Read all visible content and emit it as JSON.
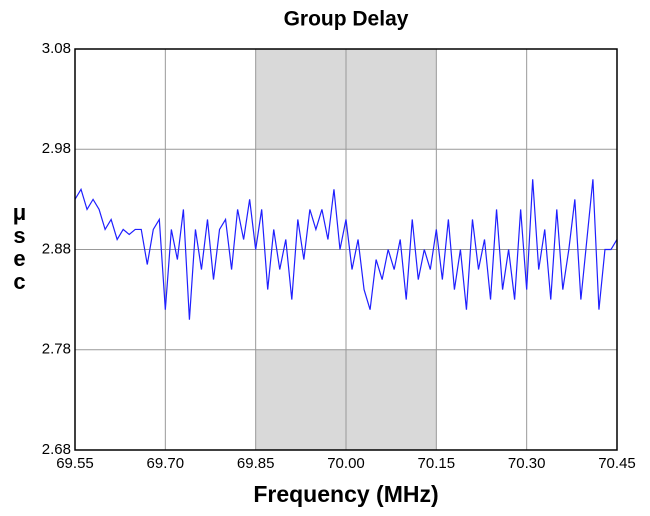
{
  "chart_data": {
    "type": "line",
    "title": "Group Delay",
    "x_label": "Frequency (MHz)",
    "y_label": "μsec",
    "x": [
      69.55,
      69.56,
      69.57,
      69.58,
      69.59,
      69.6,
      69.61,
      69.62,
      69.63,
      69.64,
      69.65,
      69.66,
      69.67,
      69.68,
      69.69,
      69.7,
      69.71,
      69.72,
      69.73,
      69.74,
      69.75,
      69.76,
      69.77,
      69.78,
      69.79,
      69.8,
      69.81,
      69.82,
      69.83,
      69.84,
      69.85,
      69.86,
      69.87,
      69.88,
      69.89,
      69.9,
      69.91,
      69.92,
      69.93,
      69.94,
      69.95,
      69.96,
      69.97,
      69.98,
      69.99,
      70.0,
      70.01,
      70.02,
      70.03,
      70.04,
      70.05,
      70.06,
      70.07,
      70.08,
      70.09,
      70.1,
      70.11,
      70.12,
      70.13,
      70.14,
      70.15,
      70.16,
      70.17,
      70.18,
      70.19,
      70.2,
      70.21,
      70.22,
      70.23,
      70.24,
      70.25,
      70.26,
      70.27,
      70.28,
      70.29,
      70.3,
      70.31,
      70.32,
      70.33,
      70.34,
      70.35,
      70.36,
      70.37,
      70.38,
      70.39,
      70.4,
      70.41,
      70.42,
      70.43,
      70.44,
      70.45
    ],
    "series": [
      {
        "name": "Group Delay",
        "color": "#1f1fff",
        "values": [
          2.93,
          2.94,
          2.92,
          2.93,
          2.92,
          2.9,
          2.91,
          2.89,
          2.9,
          2.895,
          2.9,
          2.9,
          2.865,
          2.9,
          2.91,
          2.82,
          2.9,
          2.87,
          2.92,
          2.81,
          2.9,
          2.86,
          2.91,
          2.85,
          2.9,
          2.91,
          2.86,
          2.92,
          2.89,
          2.93,
          2.88,
          2.92,
          2.84,
          2.9,
          2.86,
          2.89,
          2.83,
          2.91,
          2.87,
          2.92,
          2.9,
          2.92,
          2.89,
          2.94,
          2.88,
          2.91,
          2.86,
          2.89,
          2.84,
          2.82,
          2.87,
          2.85,
          2.88,
          2.86,
          2.89,
          2.83,
          2.91,
          2.85,
          2.88,
          2.86,
          2.9,
          2.85,
          2.91,
          2.84,
          2.88,
          2.82,
          2.91,
          2.86,
          2.89,
          2.83,
          2.92,
          2.84,
          2.88,
          2.83,
          2.92,
          2.84,
          2.95,
          2.86,
          2.9,
          2.83,
          2.92,
          2.84,
          2.88,
          2.93,
          2.83,
          2.89,
          2.95,
          2.82,
          2.88,
          2.88,
          2.89
        ]
      }
    ],
    "shaded_regions": [
      {
        "x": [
          69.85,
          70.15
        ],
        "y": [
          2.98,
          3.08
        ],
        "color": "#d9d9d9"
      },
      {
        "x": [
          69.85,
          70.15
        ],
        "y": [
          2.68,
          2.78
        ],
        "color": "#d9d9d9"
      }
    ],
    "xlim": [
      69.55,
      70.45
    ],
    "ylim": [
      2.68,
      3.08
    ],
    "xticks": [
      69.55,
      {
        "value": 69.7,
        "label": "69.70"
      },
      69.85,
      {
        "value": 70.0,
        "label": "70.00"
      },
      70.15,
      {
        "value": 70.3,
        "label": "70.30"
      },
      70.45
    ],
    "yticks": [
      2.68,
      2.78,
      2.88,
      2.98,
      3.08
    ],
    "grid": true
  }
}
